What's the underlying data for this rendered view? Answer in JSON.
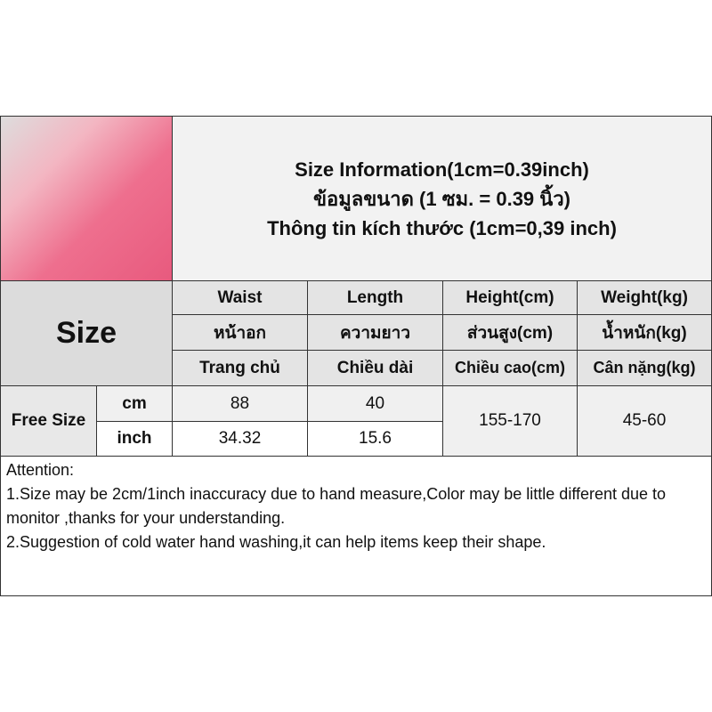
{
  "title": {
    "line1": "Size Information(1cm=0.39inch)",
    "line2": "ข้อมูลขนาด (1 ซม. = 0.39 นิ้ว)",
    "line3": "Thông tin kích thước (1cm=0,39 inch)"
  },
  "size_label": "Size",
  "columns": [
    {
      "en": "Waist",
      "th": "หน้าอก",
      "vi": "Trang chủ"
    },
    {
      "en": "Length",
      "th": "ความยาว",
      "vi": "Chiều dài"
    },
    {
      "en": "Height(cm)",
      "th": "ส่วนสูง(cm)",
      "vi": "Chiều cao(cm)"
    },
    {
      "en": "Weight(kg)",
      "th": "น้ำหนัก(kg)",
      "vi": "Cân nặng(kg)"
    }
  ],
  "row": {
    "size": "Free Size",
    "unit_cm": "cm",
    "unit_inch": "inch",
    "waist_cm": "88",
    "length_cm": "40",
    "waist_inch": "34.32",
    "length_inch": "15.6",
    "height": "155-170",
    "weight": "45-60"
  },
  "attention": {
    "heading": "Attention:",
    "line1": "1.Size may be 2cm/1inch inaccuracy due to hand measure,Color may be little different due to monitor ,thanks for your understanding.",
    "line2": "2.Suggestion of cold water hand washing,it can help items keep their shape."
  }
}
